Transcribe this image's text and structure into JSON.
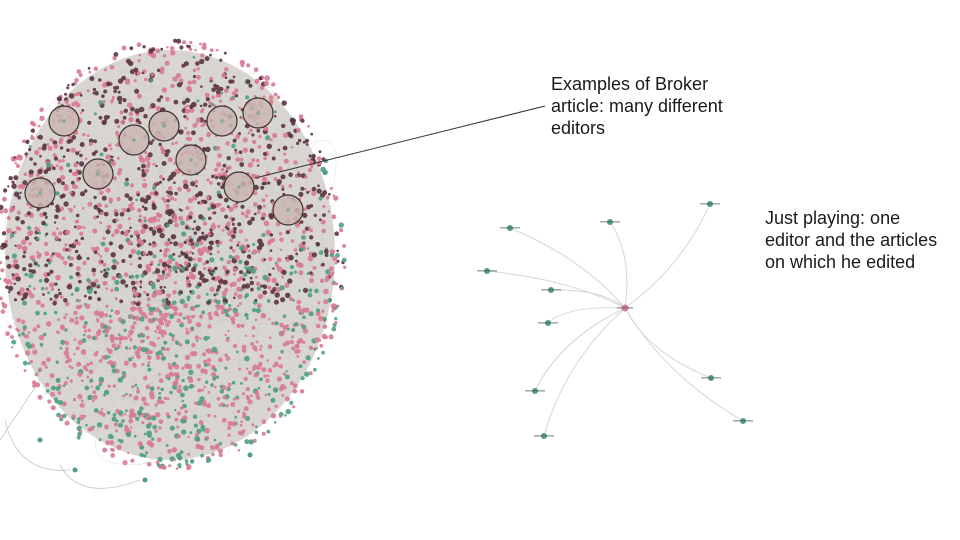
{
  "annotations": {
    "broker": "Examples of Broker article: many different editors",
    "playing": "Just playing: one editor and the articles on which he edited"
  },
  "colors": {
    "background": "#ffffff",
    "editor_node": "#d77a90",
    "article_node": "#4f9e7e",
    "edge": "#c8c8c8",
    "highlight_fill": "#c9b6b2",
    "highlight_stroke": "#3a3030",
    "pointer_line": "#333333"
  },
  "network": {
    "description_type": "editor-article bipartite graph",
    "highlighted_broker_count": 12,
    "ego_network": {
      "center_type": "editor",
      "leaf_type": "article",
      "leaf_count": 11
    }
  }
}
